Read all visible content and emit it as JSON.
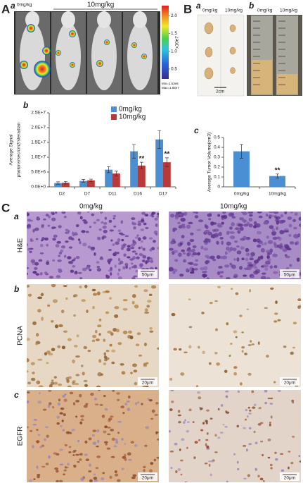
{
  "panels": {
    "A": {
      "label": "A",
      "sublabel": "a",
      "group_0": "0mg/kg",
      "group_1": "10mg/kg",
      "colorbar": {
        "lim": [
          0.22,
          2.28
        ],
        "ticks": [
          0.5,
          {
            "value": 1,
            "label": "1.0"
          },
          1.5,
          {
            "value": 2,
            "label": "2.0"
          }
        ],
        "unit_label": "x10e7",
        "min_label": "Min=1.53e6",
        "max_label": "Max=1.85e7"
      }
    },
    "B": {
      "label": "B",
      "a": {
        "sublabel": "a",
        "group_0": "0mg/kg",
        "group_1": "10mg/kg",
        "scale_bar": "2cm"
      },
      "b": {
        "sublabel": "b",
        "group_0": "0mg/kg",
        "group_1": "10mg/kg"
      }
    },
    "C": {
      "label": "C",
      "group_0": "0mg/kg",
      "group_1": "10mg/kg",
      "rows": [
        {
          "sublabel": "a",
          "stain": "H&E",
          "scale_left": "50μm",
          "scale_right": "50μm"
        },
        {
          "sublabel": "b",
          "stain": "PCNA",
          "scale_left": "20μm",
          "scale_right": "20μm"
        },
        {
          "sublabel": "c",
          "stain": "EGFR",
          "scale_left": "20μm",
          "scale_right": "20μm"
        }
      ]
    }
  },
  "chart_data": [
    {
      "type": "bar",
      "panel_label": "b",
      "y_label": [
        "Average Signal",
        "photons/sec/cm2/steradian"
      ],
      "categories": [
        "D2",
        "D7",
        "D11",
        "D16",
        "D17"
      ],
      "series": [
        {
          "name": "0mg/kg",
          "color": "#4a8fd4",
          "values": [
            1300000,
            2000000,
            5800000,
            12000000,
            16000000
          ],
          "errors": [
            400000,
            500000,
            1000000,
            2300000,
            3000000
          ]
        },
        {
          "name": "10mg/kg",
          "color": "#b63a3a",
          "values": [
            1400000,
            2200000,
            4500000,
            7200000,
            8300000
          ],
          "errors": [
            400000,
            400000,
            800000,
            1100000,
            1500000
          ]
        }
      ],
      "annotations": [
        "**",
        "**"
      ],
      "ylim": [
        0,
        25000000
      ],
      "yticks": [
        {
          "value": 0,
          "label": "0.0E+0"
        },
        {
          "value": 5000000,
          "label": "5.0E+6"
        },
        {
          "value": 10000000,
          "label": "1.0E+7"
        },
        {
          "value": 15000000,
          "label": "1.5E+7"
        },
        {
          "value": 20000000,
          "label": "2.0E+7"
        },
        {
          "value": 25000000,
          "label": "2.5E+7"
        }
      ]
    },
    {
      "type": "bar",
      "panel_label": "c",
      "y_label": [
        "Average Tumor Volume(cm3)"
      ],
      "categories": [
        "0mg/kg",
        "10mg/kg"
      ],
      "color": "#4a8fd4",
      "values": [
        0.36,
        0.11
      ],
      "errors": [
        0.07,
        0.02
      ],
      "annotations": [
        "**"
      ],
      "ylim": [
        0,
        0.5
      ],
      "yticks": [
        0,
        0.1,
        0.2,
        0.3,
        0.4,
        0.5
      ]
    }
  ]
}
